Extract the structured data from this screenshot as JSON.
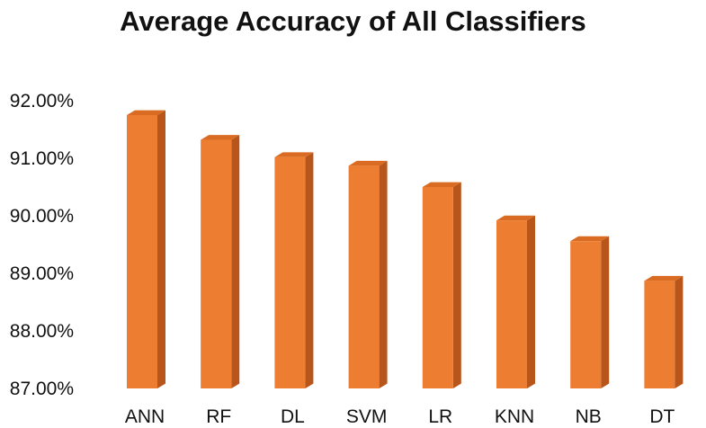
{
  "chart_data": {
    "type": "bar",
    "title": "Average Accuracy of All Classifiers",
    "xlabel": "",
    "ylabel": "",
    "categories": [
      "ANN",
      "RF",
      "DL",
      "SVM",
      "LR",
      "KNN",
      "NB",
      "DT"
    ],
    "values": [
      91.75,
      91.32,
      91.02,
      90.87,
      90.5,
      89.92,
      89.56,
      88.87
    ],
    "ylim": [
      87,
      92
    ],
    "yticks": [
      "87.00%",
      "88.00%",
      "89.00%",
      "90.00%",
      "91.00%",
      "92.00%"
    ],
    "grid": false,
    "legend": "none",
    "style": "3d-column",
    "colors": {
      "bar_front": "#ED7D31",
      "bar_side": "#B8551A",
      "bar_top": "#D96C22"
    }
  }
}
